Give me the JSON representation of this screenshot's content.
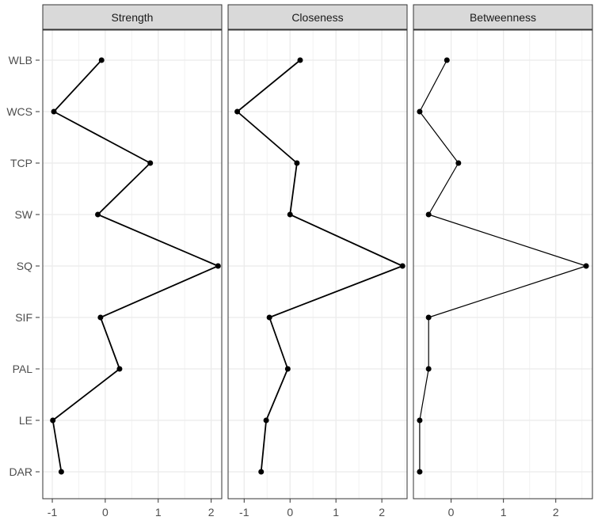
{
  "chart_data": {
    "type": "line",
    "categories": [
      "WLB",
      "WCS",
      "TCP",
      "SW",
      "SQ",
      "SIF",
      "PAL",
      "LE",
      "DAR"
    ],
    "xticks": [
      -1,
      0,
      1,
      2
    ],
    "xtick_labels": [
      "-1",
      "0",
      "1",
      "2"
    ],
    "grid": true,
    "panels": [
      {
        "title": "Strength",
        "xlim": [
          -1.18,
          2.2
        ],
        "values": [
          -0.07,
          -0.97,
          0.85,
          -0.14,
          2.13,
          -0.09,
          0.27,
          -0.99,
          -0.83
        ]
      },
      {
        "title": "Closeness",
        "xlim": [
          -1.35,
          2.55
        ],
        "values": [
          0.22,
          -1.15,
          0.15,
          0.0,
          2.45,
          -0.45,
          -0.05,
          -0.52,
          -0.63
        ]
      },
      {
        "title": "Betweenness",
        "xlim": [
          -0.72,
          2.7
        ],
        "values": [
          -0.08,
          -0.6,
          0.14,
          -0.43,
          2.58,
          -0.43,
          -0.43,
          -0.6,
          -0.6
        ]
      }
    ]
  }
}
